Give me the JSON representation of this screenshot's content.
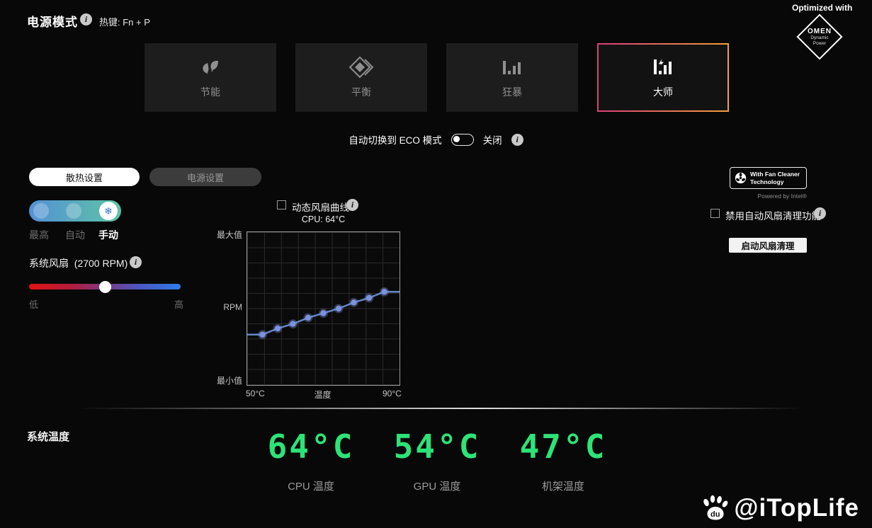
{
  "header": {
    "title": "电源模式",
    "hotkey": "热键: Fn + P"
  },
  "optimized": {
    "caption": "Optimized with",
    "brand": "OMEN",
    "sub": "Dynamic Power"
  },
  "modes": {
    "items": [
      {
        "label": "节能",
        "icon": "leaf-icon",
        "selected": false
      },
      {
        "label": "平衡",
        "icon": "balance-icon",
        "selected": false
      },
      {
        "label": "狂暴",
        "icon": "bars-icon",
        "selected": false
      },
      {
        "label": "大师",
        "icon": "bars-bolt-icon",
        "selected": true
      }
    ],
    "selected_border_from": "#d94078",
    "selected_border_to": "#f0a03c"
  },
  "eco": {
    "label": "自动切换到 ECO 模式",
    "state_label": "关闭",
    "enabled": false
  },
  "tabs": [
    {
      "label": "散热设置",
      "selected": true
    },
    {
      "label": "电源设置",
      "selected": false
    }
  ],
  "fan_mode": {
    "options": [
      "最高",
      "自动",
      "手动"
    ],
    "selected": "手动",
    "selected_index": 2
  },
  "system_fan": {
    "label": "系统风扇",
    "rpm_label": "(2700 RPM)",
    "rpm_value": 2700,
    "min_label": "低",
    "max_label": "高",
    "slider_percent": 50
  },
  "fan_curve": {
    "checkbox_label": "动态风扇曲线",
    "checked": false,
    "cpu_label": "CPU: 64°C"
  },
  "chart_data": {
    "type": "line",
    "x_label": "温度",
    "y_label": "RPM",
    "xlim": [
      50,
      90
    ],
    "x_tick_labels": [
      "50°C",
      "90°C"
    ],
    "y_tick_labels": [
      "最大值",
      "RPM",
      "最小值"
    ],
    "x": [
      54,
      58,
      62,
      66,
      70,
      74,
      78,
      82,
      86
    ],
    "rpm_percent": [
      33,
      37,
      40,
      44,
      47,
      50,
      54,
      57,
      61
    ],
    "grid": true,
    "line_color": "#6288c4",
    "point_color": "#7d92dd",
    "point_halo": "rgba(125,146,221,0.35)"
  },
  "fan_cleaner": {
    "badge_line1": "With Fan Cleaner",
    "badge_line2": "Technology",
    "powered_by": "Powered by Intel®",
    "disable_label": "禁用自动风扇清理功能",
    "checked": false,
    "start_button": "启动风扇清理"
  },
  "system_temps": {
    "title": "系统温度",
    "accent_color": "#2de377",
    "items": [
      {
        "value": "64°C",
        "label": "CPU 温度"
      },
      {
        "value": "54°C",
        "label": "GPU 温度"
      },
      {
        "value": "47°C",
        "label": "机架温度"
      }
    ]
  },
  "watermark": {
    "logo_text": "du",
    "text": "@iTopLife"
  }
}
